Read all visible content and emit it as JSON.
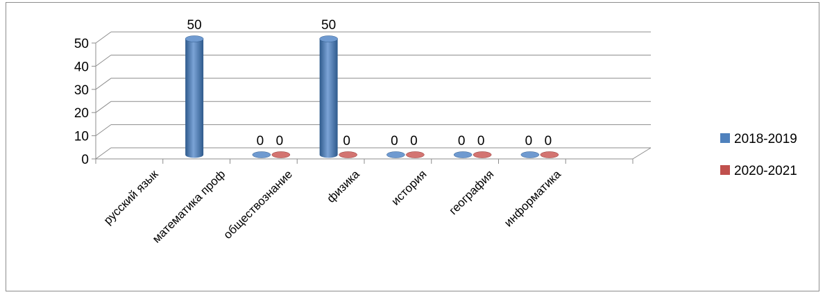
{
  "chart_data": {
    "type": "bar",
    "categories": [
      "русский язык",
      "математика проф",
      "обществознание",
      "физика",
      "история",
      "география",
      "информатика",
      ""
    ],
    "series": [
      {
        "name": "2018-2019",
        "values": [
          null,
          50,
          0,
          50,
          0,
          0,
          0,
          null
        ],
        "labels": [
          "",
          "50",
          "0",
          "50",
          "0",
          "0",
          "0",
          ""
        ],
        "color": "#4F81BD"
      },
      {
        "name": "2020-2021",
        "values": [
          null,
          null,
          0,
          0,
          0,
          0,
          0,
          null
        ],
        "labels": [
          "",
          "",
          "0",
          "0",
          "0",
          "0",
          "0",
          ""
        ],
        "color": "#C0504D"
      }
    ],
    "yticks": [
      "0",
      "10",
      "20",
      "30",
      "40",
      "50"
    ],
    "ylim": [
      0,
      50
    ],
    "grid": true,
    "style": "3d-cylinder",
    "legend_position": "right"
  }
}
